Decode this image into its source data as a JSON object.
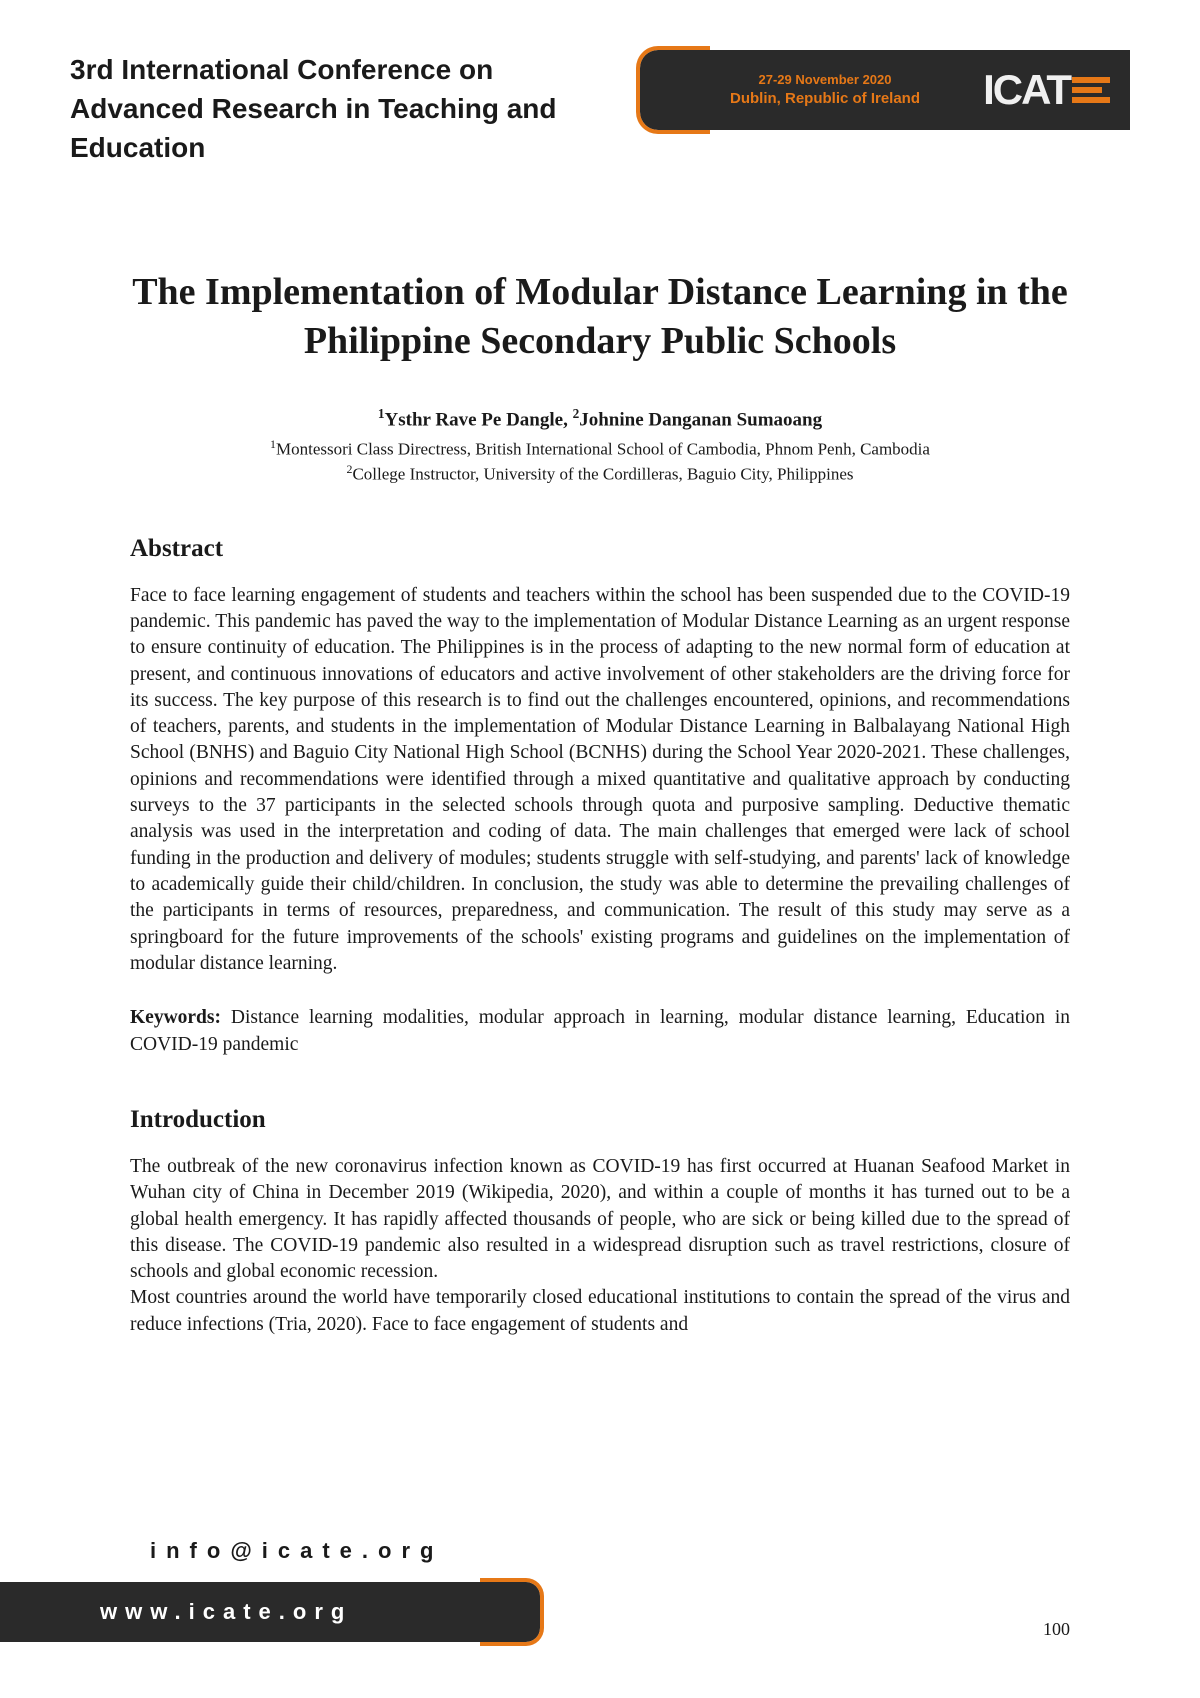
{
  "header": {
    "conference_title": "3rd International Conference on Advanced Research in Teaching and Education",
    "date": "27-29 November 2020",
    "location": "Dublin, Republic of Ireland",
    "logo_text": "ICAT"
  },
  "paper": {
    "title": "The Implementation of Modular Distance Learning in the Philippine Secondary Public Schools",
    "author1": "Ysthr Rave Pe Dangle",
    "author2": "Johnine Danganan Sumaoang",
    "affil1": "Montessori Class Directress, British International School of Cambodia, Phnom Penh, Cambodia",
    "affil2": "College Instructor, University of the Cordilleras, Baguio City, Philippines"
  },
  "sections": {
    "abstract_h": "Abstract",
    "abstract_body": "Face to face learning engagement of students and teachers within the school has been suspended due to the COVID-19 pandemic. This pandemic has paved the way to the implementation of Modular Distance Learning as an urgent response to ensure continuity of education. The Philippines is in the process of adapting to the new normal form of education at present, and continuous innovations of educators and active involvement of other stakeholders are the driving force for its success. The key purpose of this research is to find out the challenges encountered, opinions, and recommendations of teachers, parents, and students in the implementation of Modular Distance Learning in Balbalayang National High School (BNHS) and Baguio City National High School (BCNHS) during the School Year 2020-2021. These challenges, opinions and recommendations were identified through a mixed quantitative and qualitative approach by conducting surveys to the 37 participants in the selected schools through quota and purposive sampling. Deductive thematic analysis was used in the interpretation and coding of data. The main challenges that emerged were lack of school funding in the production and delivery of modules; students struggle with self-studying, and parents' lack of knowledge to academically guide their child/children. In conclusion, the study was able to determine the prevailing challenges of the participants in terms of resources, preparedness, and communication. The result of this study may serve as a springboard for the future improvements of the schools' existing programs and guidelines on the implementation of modular distance learning.",
    "keywords_label": "Keywords:",
    "keywords_body": " Distance learning modalities, modular approach in learning, modular distance learning, Education in COVID-19 pandemic",
    "intro_h": "Introduction",
    "intro_p1": "The outbreak of the new coronavirus infection known as COVID-19 has first occurred at Huanan Seafood Market in Wuhan city of China in December 2019 (Wikipedia, 2020), and within a couple of months it has turned out to be a global health emergency. It has rapidly affected thousands of people, who are sick or being killed due to the spread of this disease. The COVID-19 pandemic also resulted in a widespread disruption such as travel restrictions, closure of schools and global economic recession.",
    "intro_p2": "Most countries around the world have temporarily closed educational institutions to contain the spread of the virus and reduce infections (Tria, 2020). Face to face engagement of students and"
  },
  "footer": {
    "email": "info@icate.org",
    "url": "www.icate.org",
    "page": "100"
  },
  "colors": {
    "accent": "#e67817",
    "dark": "#2a2a2a",
    "text": "#1a1a1a",
    "bg": "#ffffff"
  }
}
